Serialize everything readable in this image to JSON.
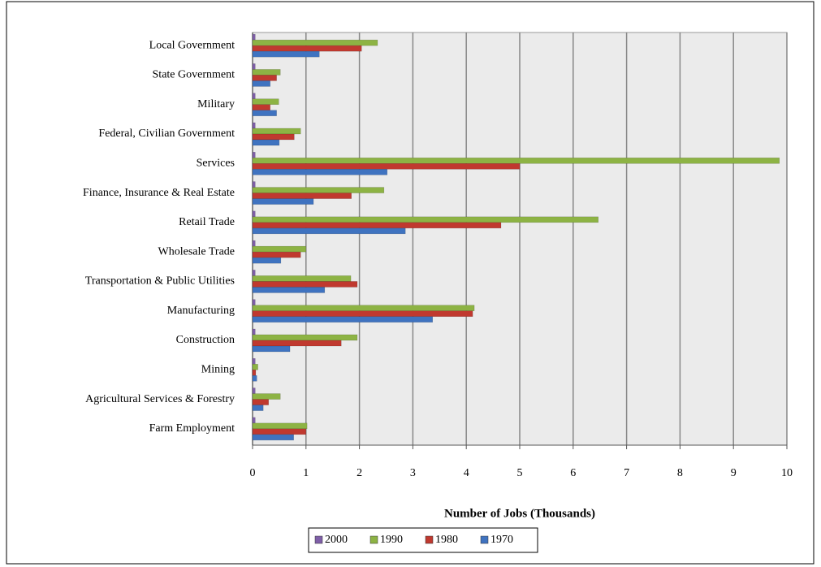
{
  "chart_data": {
    "type": "hbar",
    "categories": [
      "Local Government",
      "State Government",
      "Military",
      "Federal, Civilian Government",
      "Services",
      "Finance, Insurance & Real Estate",
      "Retail Trade",
      "Wholesale Trade",
      "Transportation & Public Utilities",
      "Manufacturing",
      "Construction",
      "Mining",
      "Agricultural Services & Forestry",
      "Farm Employment"
    ],
    "series": [
      {
        "name": "2000",
        "color": "#7f5fa8",
        "values": [
          0.05,
          0.05,
          0.05,
          0.05,
          0.05,
          0.05,
          0.05,
          0.05,
          0.05,
          0.05,
          0.05,
          0.05,
          0.05,
          0.05
        ]
      },
      {
        "name": "1990",
        "color": "#8db344",
        "values": [
          2.34,
          0.52,
          0.49,
          0.9,
          9.86,
          2.46,
          6.47,
          1.0,
          1.84,
          4.15,
          1.96,
          0.1,
          0.52,
          1.02
        ]
      },
      {
        "name": "1980",
        "color": "#c0392f",
        "values": [
          2.04,
          0.45,
          0.33,
          0.78,
          5.0,
          1.85,
          4.65,
          0.9,
          1.96,
          4.12,
          1.66,
          0.06,
          0.3,
          1.0
        ]
      },
      {
        "name": "1970",
        "color": "#3f73c0",
        "values": [
          1.25,
          0.33,
          0.45,
          0.5,
          2.52,
          1.14,
          2.86,
          0.53,
          1.35,
          3.37,
          0.7,
          0.08,
          0.2,
          0.77
        ]
      }
    ],
    "xlabel": "Number of Jobs (Thousands)",
    "xlim": [
      0,
      10
    ],
    "xticks": [
      0,
      1,
      2,
      3,
      4,
      5,
      6,
      7,
      8,
      9,
      10
    ],
    "grid": true,
    "legend": "bottom"
  }
}
